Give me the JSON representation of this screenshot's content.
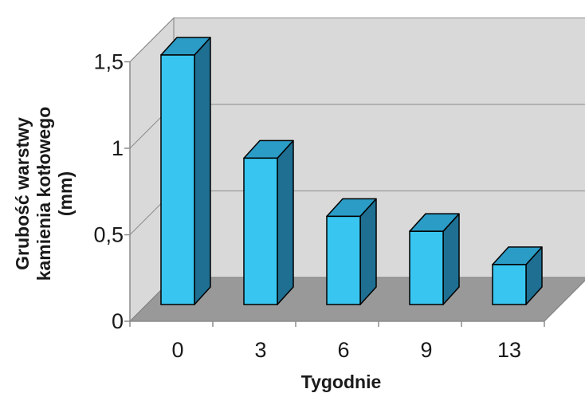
{
  "chart_data": {
    "type": "bar",
    "xlabel": "Tygodnie",
    "ylabel": [
      "Grubość warstwy",
      "kamienia kotłowego",
      "(mm)"
    ],
    "categories": [
      "0",
      "3",
      "6",
      "9",
      "13"
    ],
    "values": [
      1.5,
      0.88,
      0.53,
      0.44,
      0.24
    ],
    "ylim": [
      0,
      1.5
    ],
    "yticks": [
      {
        "value": 0,
        "label": "0"
      },
      {
        "value": 0.5,
        "label": "0,5"
      },
      {
        "value": 1,
        "label": "1"
      },
      {
        "value": 1.5,
        "label": "1,5"
      }
    ],
    "grid": true,
    "style": "3d",
    "colors": {
      "bar_front": "#38c6f0",
      "bar_top": "#2a9cc6",
      "bar_side": "#1e6f92",
      "back_wall": "#d9d9d9",
      "floor": "#999999"
    }
  }
}
